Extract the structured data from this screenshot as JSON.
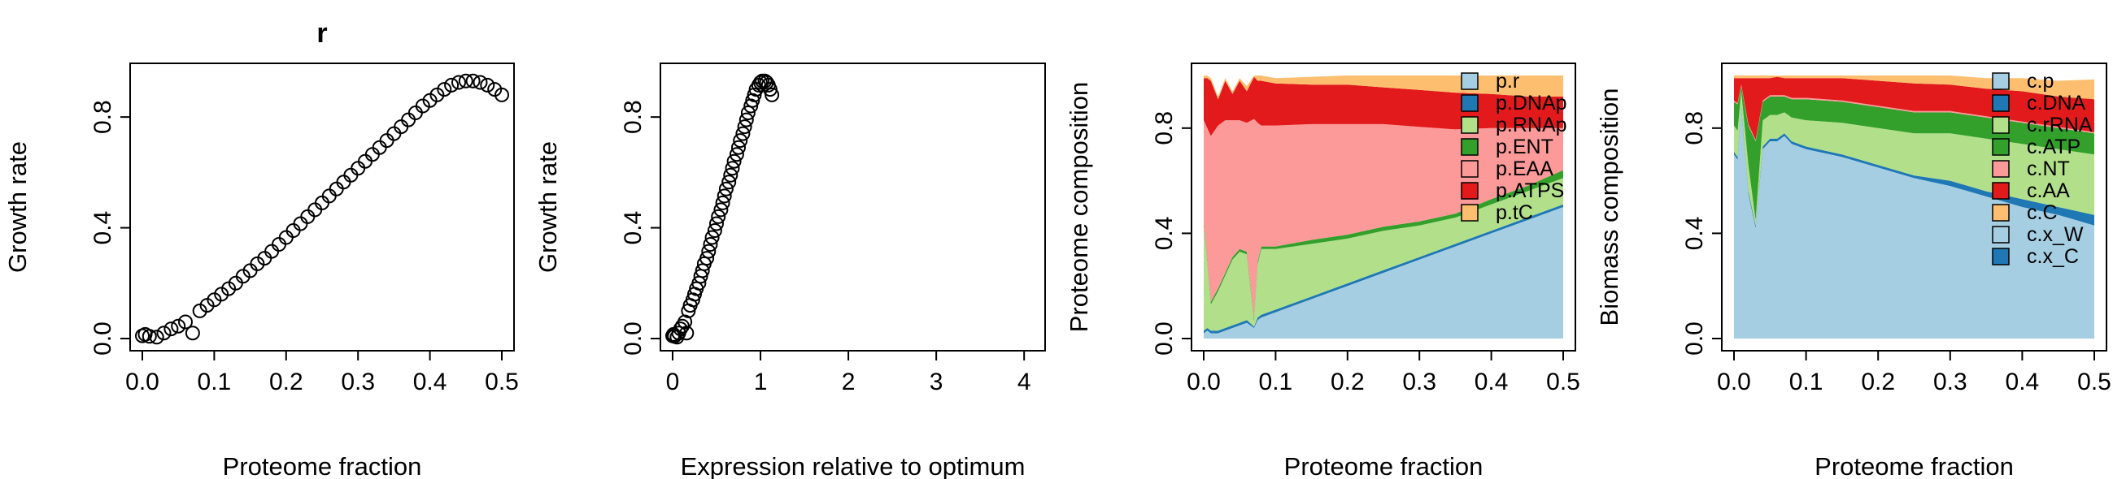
{
  "chart_data": [
    {
      "type": "scatter",
      "title": "r",
      "xlabel": "Proteome fraction",
      "ylabel": "Growth rate",
      "xlim": [
        0,
        0.5
      ],
      "ylim": [
        0,
        0.95
      ],
      "xticks": [
        "0.0",
        "0.1",
        "0.2",
        "0.3",
        "0.4",
        "0.5"
      ],
      "yticks": [
        "0.0",
        "0.4",
        "0.8"
      ],
      "x": [
        0.0,
        0.004,
        0.01,
        0.02,
        0.03,
        0.04,
        0.05,
        0.06,
        0.07,
        0.08,
        0.09,
        0.1,
        0.11,
        0.12,
        0.13,
        0.14,
        0.15,
        0.16,
        0.17,
        0.18,
        0.19,
        0.2,
        0.21,
        0.22,
        0.23,
        0.24,
        0.25,
        0.26,
        0.27,
        0.28,
        0.29,
        0.3,
        0.31,
        0.32,
        0.33,
        0.34,
        0.35,
        0.36,
        0.37,
        0.38,
        0.39,
        0.4,
        0.41,
        0.42,
        0.43,
        0.44,
        0.45,
        0.46,
        0.47,
        0.48,
        0.49,
        0.5
      ],
      "y": [
        0.01,
        0.015,
        0.008,
        0.005,
        0.02,
        0.035,
        0.045,
        0.06,
        0.02,
        0.1,
        0.12,
        0.14,
        0.16,
        0.18,
        0.2,
        0.225,
        0.245,
        0.27,
        0.29,
        0.315,
        0.34,
        0.365,
        0.39,
        0.415,
        0.44,
        0.465,
        0.49,
        0.515,
        0.54,
        0.565,
        0.59,
        0.615,
        0.64,
        0.665,
        0.69,
        0.715,
        0.74,
        0.765,
        0.79,
        0.815,
        0.84,
        0.86,
        0.88,
        0.9,
        0.915,
        0.925,
        0.93,
        0.93,
        0.925,
        0.915,
        0.9,
        0.88
      ]
    },
    {
      "type": "scatter",
      "xlabel": "Expression relative to optimum",
      "ylabel": "Growth rate",
      "xlim": [
        0,
        4.1
      ],
      "ylim": [
        0,
        0.95
      ],
      "xticks": [
        "0",
        "1",
        "2",
        "3",
        "4"
      ],
      "yticks": [
        "0.0",
        "0.4",
        "0.8"
      ],
      "x": [
        0.0,
        0.01,
        0.02,
        0.05,
        0.07,
        0.09,
        0.11,
        0.14,
        0.16,
        0.18,
        0.2,
        0.23,
        0.25,
        0.27,
        0.3,
        0.32,
        0.34,
        0.36,
        0.39,
        0.41,
        0.43,
        0.45,
        0.48,
        0.5,
        0.52,
        0.55,
        0.57,
        0.59,
        0.61,
        0.64,
        0.66,
        0.68,
        0.7,
        0.73,
        0.75,
        0.77,
        0.8,
        0.82,
        0.84,
        0.86,
        0.89,
        0.91,
        0.93,
        0.95,
        0.98,
        1.0,
        1.02,
        1.05,
        1.07,
        1.09,
        1.11,
        1.13
      ],
      "y": [
        0.01,
        0.015,
        0.008,
        0.005,
        0.02,
        0.035,
        0.045,
        0.06,
        0.02,
        0.1,
        0.12,
        0.14,
        0.16,
        0.18,
        0.2,
        0.225,
        0.245,
        0.27,
        0.29,
        0.315,
        0.34,
        0.365,
        0.39,
        0.415,
        0.44,
        0.465,
        0.49,
        0.515,
        0.54,
        0.565,
        0.59,
        0.615,
        0.64,
        0.665,
        0.69,
        0.715,
        0.74,
        0.765,
        0.79,
        0.815,
        0.84,
        0.86,
        0.88,
        0.9,
        0.915,
        0.925,
        0.93,
        0.93,
        0.925,
        0.915,
        0.9,
        0.88
      ]
    },
    {
      "type": "area",
      "xlabel": "Proteome fraction",
      "ylabel": "Proteome composition",
      "xlim": [
        0,
        0.5
      ],
      "ylim": [
        0,
        1
      ],
      "xticks": [
        "0.0",
        "0.1",
        "0.2",
        "0.3",
        "0.4",
        "0.5"
      ],
      "yticks": [
        "0.0",
        "0.4",
        "0.8"
      ],
      "legend_position": "top-right",
      "x": [
        0.0,
        0.005,
        0.01,
        0.02,
        0.03,
        0.04,
        0.05,
        0.06,
        0.07,
        0.075,
        0.08,
        0.1,
        0.15,
        0.2,
        0.25,
        0.3,
        0.35,
        0.4,
        0.45,
        0.5
      ],
      "series": [
        {
          "name": "p.r",
          "color": "#a6cee3",
          "values": [
            0.02,
            0.03,
            0.02,
            0.02,
            0.03,
            0.04,
            0.05,
            0.06,
            0.04,
            0.07,
            0.08,
            0.1,
            0.15,
            0.2,
            0.25,
            0.3,
            0.35,
            0.4,
            0.45,
            0.5
          ]
        },
        {
          "name": "p.DNAp",
          "color": "#1f78b4",
          "values": [
            0.01,
            0.01,
            0.01,
            0.01,
            0.01,
            0.01,
            0.01,
            0.01,
            0.005,
            0.01,
            0.01,
            0.01,
            0.01,
            0.01,
            0.01,
            0.01,
            0.01,
            0.01,
            0.01,
            0.01
          ]
        },
        {
          "name": "p.RNAp",
          "color": "#b2df8a",
          "values": [
            0.4,
            0.25,
            0.1,
            0.15,
            0.2,
            0.25,
            0.27,
            0.25,
            0.02,
            0.2,
            0.25,
            0.23,
            0.2,
            0.17,
            0.15,
            0.12,
            0.1,
            0.1,
            0.1,
            0.1
          ]
        },
        {
          "name": "p.ENT",
          "color": "#33a02c",
          "values": [
            0.01,
            0.01,
            0.01,
            0.01,
            0.01,
            0.01,
            0.01,
            0.01,
            0.01,
            0.01,
            0.01,
            0.01,
            0.015,
            0.015,
            0.015,
            0.015,
            0.015,
            0.02,
            0.02,
            0.03
          ]
        },
        {
          "name": "p.EAA",
          "color": "#fb9a99",
          "values": [
            0.39,
            0.5,
            0.63,
            0.62,
            0.58,
            0.52,
            0.49,
            0.49,
            0.76,
            0.53,
            0.46,
            0.46,
            0.44,
            0.42,
            0.39,
            0.36,
            0.32,
            0.27,
            0.22,
            0.16
          ]
        },
        {
          "name": "p.ATPS",
          "color": "#e31a1c",
          "values": [
            0.16,
            0.19,
            0.21,
            0.1,
            0.15,
            0.1,
            0.15,
            0.12,
            0.16,
            0.16,
            0.17,
            0.16,
            0.15,
            0.15,
            0.14,
            0.14,
            0.14,
            0.13,
            0.12,
            0.12
          ]
        },
        {
          "name": "p.tC",
          "color": "#fdbf6f",
          "values": [
            0.01,
            0.01,
            0.01,
            0.01,
            0.01,
            0.01,
            0.01,
            0.02,
            0.015,
            0.02,
            0.02,
            0.02,
            0.03,
            0.035,
            0.045,
            0.055,
            0.065,
            0.07,
            0.08,
            0.08
          ]
        }
      ]
    },
    {
      "type": "area",
      "xlabel": "Proteome fraction",
      "ylabel": "Biomass composition",
      "xlim": [
        0,
        0.5
      ],
      "ylim": [
        0,
        1
      ],
      "xticks": [
        "0.0",
        "0.1",
        "0.2",
        "0.3",
        "0.4",
        "0.5"
      ],
      "yticks": [
        "0.0",
        "0.4",
        "0.8"
      ],
      "legend_position": "top-right",
      "x": [
        0.0,
        0.005,
        0.01,
        0.02,
        0.03,
        0.04,
        0.05,
        0.06,
        0.07,
        0.08,
        0.1,
        0.15,
        0.2,
        0.25,
        0.3,
        0.35,
        0.4,
        0.45,
        0.5
      ],
      "series": [
        {
          "name": "c.p",
          "color": "#a6cee3",
          "values": [
            0.7,
            0.68,
            0.88,
            0.55,
            0.42,
            0.72,
            0.75,
            0.75,
            0.77,
            0.74,
            0.72,
            0.69,
            0.65,
            0.61,
            0.58,
            0.54,
            0.5,
            0.47,
            0.43
          ]
        },
        {
          "name": "c.DNA",
          "color": "#1f78b4",
          "values": [
            0.01,
            0.01,
            0.01,
            0.01,
            0.01,
            0.01,
            0.01,
            0.01,
            0.01,
            0.01,
            0.01,
            0.01,
            0.01,
            0.01,
            0.02,
            0.02,
            0.03,
            0.03,
            0.04
          ]
        },
        {
          "name": "c.rRNA",
          "color": "#b2df8a",
          "values": [
            0.1,
            0.1,
            0.05,
            0.1,
            0.02,
            0.1,
            0.09,
            0.09,
            0.08,
            0.09,
            0.1,
            0.12,
            0.14,
            0.16,
            0.18,
            0.2,
            0.21,
            0.22,
            0.23
          ]
        },
        {
          "name": "c.ATP",
          "color": "#33a02c",
          "values": [
            0.09,
            0.1,
            0.02,
            0.15,
            0.3,
            0.07,
            0.07,
            0.07,
            0.06,
            0.07,
            0.08,
            0.08,
            0.08,
            0.08,
            0.08,
            0.08,
            0.08,
            0.08,
            0.08
          ]
        },
        {
          "name": "c.NT",
          "color": "#fb9a99",
          "values": [
            0.005,
            0.005,
            0.005,
            0.005,
            0.005,
            0.005,
            0.005,
            0.005,
            0.005,
            0.005,
            0.005,
            0.005,
            0.005,
            0.005,
            0.005,
            0.005,
            0.005,
            0.005,
            0.005
          ]
        },
        {
          "name": "c.AA",
          "color": "#e31a1c",
          "values": [
            0.085,
            0.095,
            0.025,
            0.175,
            0.235,
            0.085,
            0.065,
            0.07,
            0.065,
            0.075,
            0.075,
            0.085,
            0.095,
            0.105,
            0.1,
            0.105,
            0.115,
            0.115,
            0.125
          ]
        },
        {
          "name": "c.C",
          "color": "#fdbf6f",
          "values": [
            0.01,
            0.01,
            0.01,
            0.01,
            0.01,
            0.01,
            0.01,
            0.005,
            0.01,
            0.01,
            0.01,
            0.015,
            0.02,
            0.03,
            0.035,
            0.04,
            0.05,
            0.06,
            0.075
          ]
        },
        {
          "name": "c.x_W",
          "color": "#a6cee3",
          "values": [
            0,
            0,
            0,
            0,
            0,
            0,
            0,
            0,
            0,
            0,
            0,
            0,
            0,
            0,
            0,
            0,
            0,
            0,
            0
          ]
        },
        {
          "name": "c.x_C",
          "color": "#1f78b4",
          "values": [
            0,
            0,
            0,
            0,
            0,
            0,
            0,
            0,
            0,
            0,
            0,
            0,
            0,
            0,
            0,
            0,
            0,
            0,
            0
          ]
        }
      ]
    }
  ]
}
